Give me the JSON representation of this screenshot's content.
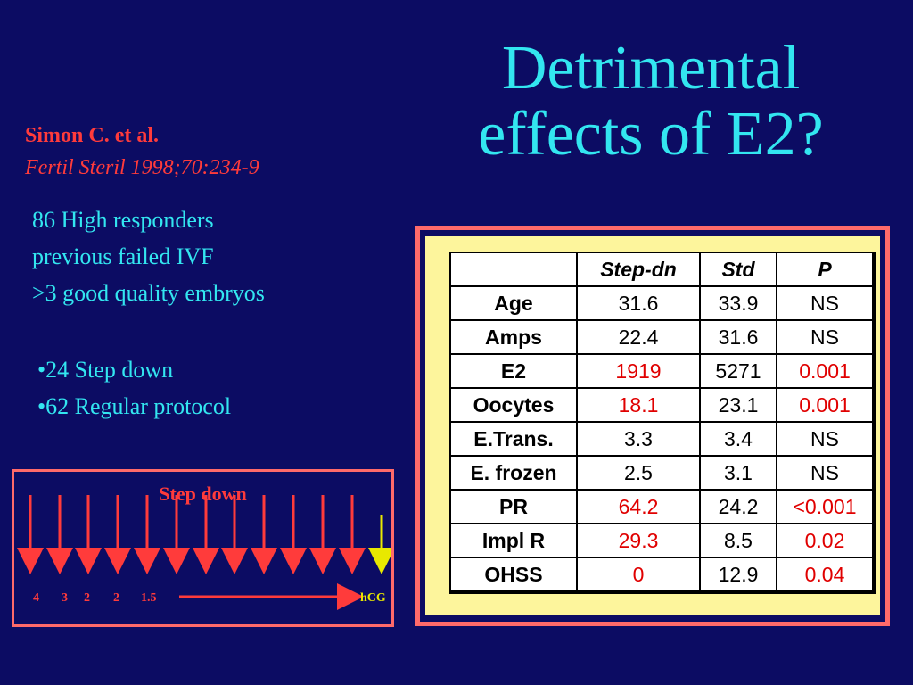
{
  "title": {
    "line1": "Detrimental",
    "line2": "effects of E2?"
  },
  "citation": {
    "author": "Simon C. et al.",
    "journal": "Fertil Steril 1998;70:234-9"
  },
  "study": [
    "86 High responders",
    "previous failed IVF",
    ">3 good quality embryos"
  ],
  "groups": [
    "24 Step down",
    "62 Regular protocol"
  ],
  "step_down": {
    "title": "Step down",
    "doses": [
      "4",
      "3",
      "2",
      "2",
      "1.5"
    ],
    "hcg_label": "hCG"
  },
  "table": {
    "headers": [
      "",
      "Step-dn",
      "Std",
      "P"
    ],
    "rows": [
      {
        "label": "Age",
        "step": "31.6",
        "std": "33.9",
        "p": "NS",
        "highlight": false
      },
      {
        "label": "Amps",
        "step": "22.4",
        "std": "31.6",
        "p": "NS",
        "highlight": false
      },
      {
        "label": "E2",
        "step": "1919",
        "std": "5271",
        "p": "0.001",
        "highlight": true
      },
      {
        "label": "Oocytes",
        "step": "18.1",
        "std": "23.1",
        "p": "0.001",
        "highlight": true
      },
      {
        "label": "E.Trans.",
        "step": "3.3",
        "std": "3.4",
        "p": "NS",
        "highlight": false
      },
      {
        "label": "E. frozen",
        "step": "2.5",
        "std": "3.1",
        "p": "NS",
        "highlight": false
      },
      {
        "label": "PR",
        "step": "64.2",
        "std": "24.2",
        "p": "<0.001",
        "highlight": true
      },
      {
        "label": "Impl R",
        "step": "29.3",
        "std": "8.5",
        "p": "0.02",
        "highlight": true
      },
      {
        "label": "OHSS",
        "step": "0",
        "std": "12.9",
        "p": "0.04",
        "highlight": true
      }
    ]
  },
  "colors": {
    "background": "#0c0c63",
    "title": "#33e6f0",
    "accent_red": "#ff3b3b",
    "frame": "#ff6a6a",
    "table_panel": "#fdf59c",
    "hcg_arrow": "#e8e800"
  }
}
